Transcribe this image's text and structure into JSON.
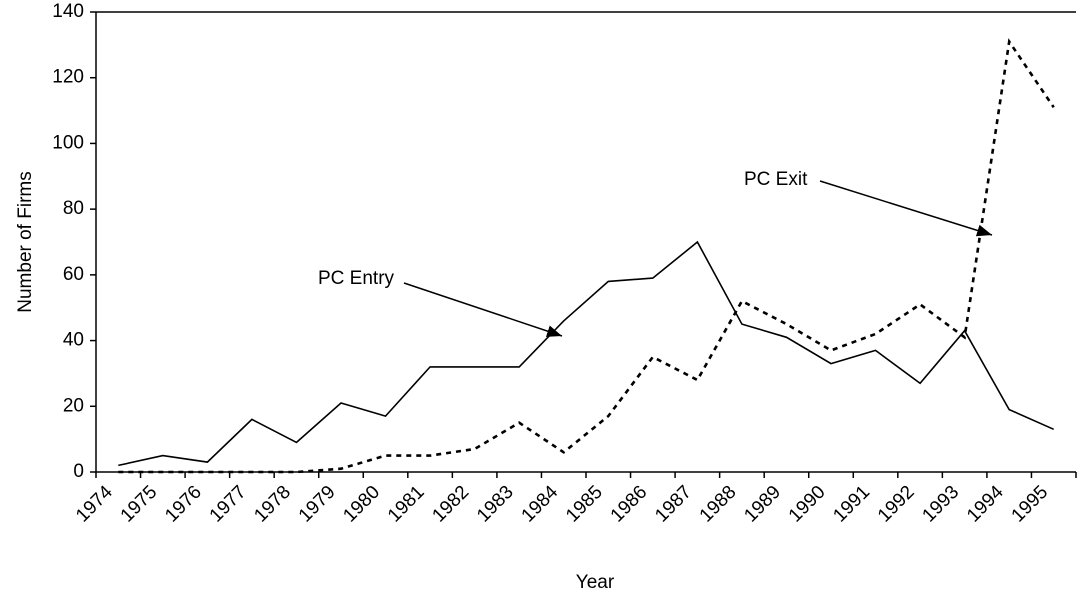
{
  "chart_data": {
    "type": "line",
    "x_label": "Year",
    "y_label": "Number of Firms",
    "categories": [
      "1974",
      "1975",
      "1976",
      "1977",
      "1978",
      "1979",
      "1980",
      "1981",
      "1982",
      "1983",
      "1984",
      "1985",
      "1986",
      "1987",
      "1988",
      "1989",
      "1990",
      "1991",
      "1992",
      "1993",
      "1994",
      "1995"
    ],
    "series": [
      {
        "name": "PC Entry",
        "color": "#000000",
        "dashed": false,
        "values": [
          2,
          5,
          3,
          16,
          9,
          21,
          17,
          32,
          32,
          32,
          46,
          58,
          59,
          70,
          45,
          41,
          33,
          37,
          27,
          43,
          19,
          13
        ]
      },
      {
        "name": "PC Exit",
        "color": "#000000",
        "dashed": true,
        "values": [
          0,
          0,
          0,
          0,
          0,
          1,
          5,
          5,
          7,
          15,
          6,
          17,
          35,
          28,
          52,
          45,
          37,
          42,
          51,
          41,
          131,
          111
        ]
      }
    ],
    "ylim": [
      0,
      140
    ],
    "yticks": [
      0,
      20,
      40,
      60,
      80,
      100,
      120,
      140
    ],
    "grid": false
  }
}
